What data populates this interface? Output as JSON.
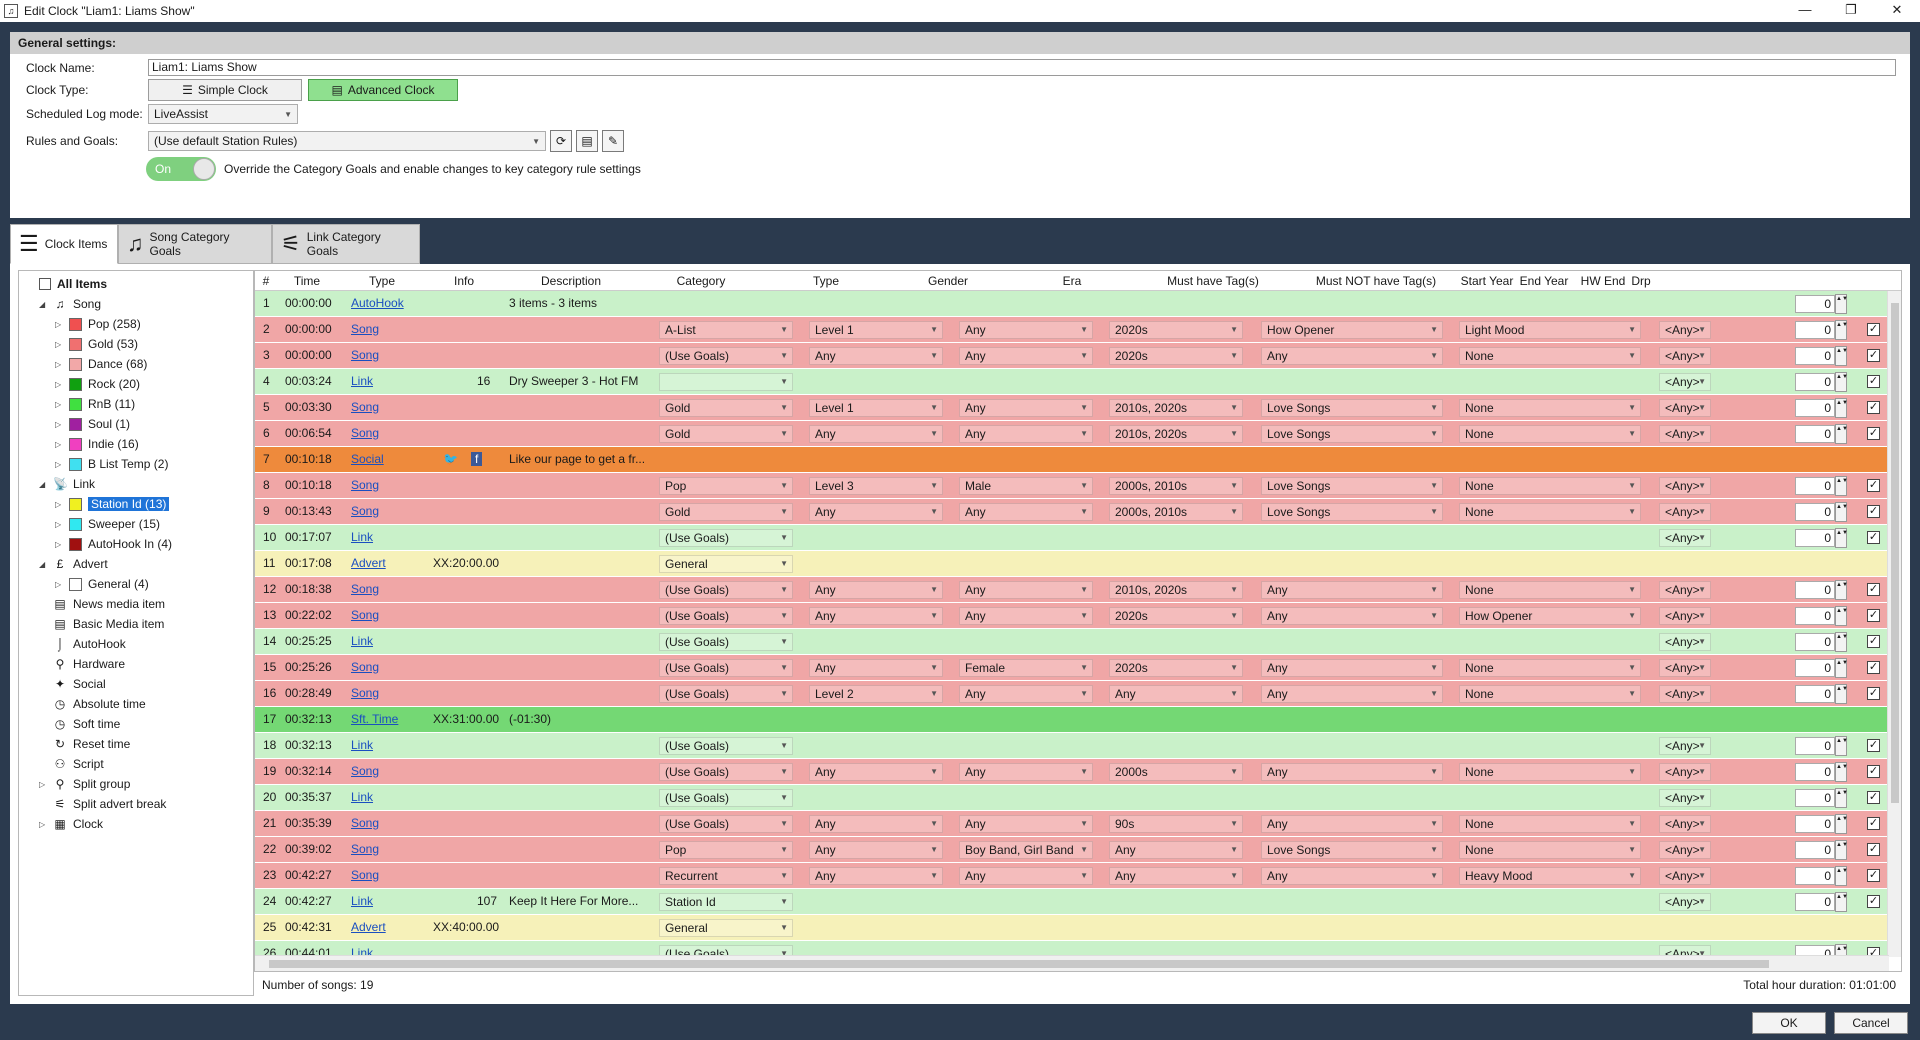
{
  "window": {
    "title": "Edit Clock \"Liam1: Liams Show\"",
    "minimize": "—",
    "maximize": "❐",
    "close": "✕"
  },
  "general": {
    "header": "General settings:",
    "clock_name_label": "Clock Name:",
    "clock_name_value": "Liam1: Liams Show",
    "clock_type_label": "Clock Type:",
    "simple_clock": "Simple Clock",
    "advanced_clock": "Advanced Clock",
    "log_mode_label": "Scheduled Log mode:",
    "log_mode_value": "LiveAssist",
    "rules_label": "Rules and Goals:",
    "rules_value": "(Use default Station Rules)",
    "toggle_label": "On",
    "override_text": "Override the Category Goals and enable changes to key category rule settings"
  },
  "tabs": [
    {
      "label": "Clock Items",
      "icon": "list-icon"
    },
    {
      "label": "Song Category Goals",
      "icon": "music-note-icon"
    },
    {
      "label": "Link Category Goals",
      "icon": "antenna-icon"
    }
  ],
  "tree": [
    {
      "label": "All Items",
      "level": 0,
      "kind": "checkbox",
      "bold": true
    },
    {
      "label": "Song",
      "level": 1,
      "kind": "icon",
      "icon": "♫",
      "expand": "◢"
    },
    {
      "label": "Pop (258)",
      "level": 2,
      "kind": "swatch",
      "color": "#f05050",
      "expand": "▷"
    },
    {
      "label": "Gold (53)",
      "level": 2,
      "kind": "swatch",
      "color": "#f07070",
      "expand": "▷"
    },
    {
      "label": "Dance (68)",
      "level": 2,
      "kind": "swatch",
      "color": "#f2a8a8",
      "expand": "▷"
    },
    {
      "label": "Rock (20)",
      "level": 2,
      "kind": "swatch",
      "color": "#10a010",
      "expand": "▷"
    },
    {
      "label": "RnB (11)",
      "level": 2,
      "kind": "swatch",
      "color": "#40e040",
      "expand": "▷"
    },
    {
      "label": "Soul (1)",
      "level": 2,
      "kind": "swatch",
      "color": "#a020a0",
      "expand": "▷"
    },
    {
      "label": "Indie (16)",
      "level": 2,
      "kind": "swatch",
      "color": "#f040c0",
      "expand": "▷"
    },
    {
      "label": "B List Temp (2)",
      "level": 2,
      "kind": "swatch",
      "color": "#40e0f0",
      "expand": "▷"
    },
    {
      "label": "Link",
      "level": 1,
      "kind": "icon",
      "icon": "📡",
      "expand": "◢"
    },
    {
      "label": "Station Id (13)",
      "level": 2,
      "kind": "swatch",
      "color": "#f0f020",
      "expand": "▷",
      "selected": true
    },
    {
      "label": "Sweeper (15)",
      "level": 2,
      "kind": "swatch",
      "color": "#30e8f0",
      "expand": "▷"
    },
    {
      "label": "AutoHook In (4)",
      "level": 2,
      "kind": "swatch",
      "color": "#a01010",
      "expand": "▷"
    },
    {
      "label": "Advert",
      "level": 1,
      "kind": "icon",
      "icon": "£",
      "expand": "◢"
    },
    {
      "label": "General (4)",
      "level": 2,
      "kind": "swatch",
      "color": "#ffffff",
      "expand": "▷"
    },
    {
      "label": "News media item",
      "level": 1,
      "kind": "icon",
      "icon": "▤"
    },
    {
      "label": "Basic Media item",
      "level": 1,
      "kind": "icon",
      "icon": "▤"
    },
    {
      "label": "AutoHook",
      "level": 1,
      "kind": "icon",
      "icon": "⌡"
    },
    {
      "label": "Hardware",
      "level": 1,
      "kind": "icon",
      "icon": "⚲"
    },
    {
      "label": "Social",
      "level": 1,
      "kind": "icon",
      "icon": "✦"
    },
    {
      "label": "Absolute time",
      "level": 1,
      "kind": "icon",
      "icon": "◷"
    },
    {
      "label": "Soft time",
      "level": 1,
      "kind": "icon",
      "icon": "◷"
    },
    {
      "label": "Reset time",
      "level": 1,
      "kind": "icon",
      "icon": "↻"
    },
    {
      "label": "Script",
      "level": 1,
      "kind": "icon",
      "icon": "⚇"
    },
    {
      "label": "Split group",
      "level": 1,
      "kind": "icon",
      "icon": "⚲",
      "expand": "▷"
    },
    {
      "label": "Split advert break",
      "level": 1,
      "kind": "icon",
      "icon": "⚟"
    },
    {
      "label": "Clock",
      "level": 1,
      "kind": "icon",
      "icon": "▦",
      "expand": "▷"
    }
  ],
  "grid_headers": [
    "#",
    "Time",
    "Type",
    "Info",
    "Description",
    "Category",
    "Type",
    "Gender",
    "Era",
    "Must have Tag(s)",
    "Must NOT have Tag(s)",
    "Start Year",
    "End Year",
    "HW End",
    "Drp"
  ],
  "rows": [
    {
      "n": "1",
      "time": "00:00:00",
      "type": "AutoHook",
      "info": "",
      "desc": "3 items - 3 items",
      "cat": "",
      "ty": "",
      "gender": "",
      "era": "",
      "must": "",
      "mustnot": "",
      "start": "",
      "hw": "0",
      "drp": "",
      "color": "green",
      "catdd": false,
      "start_dd": false
    },
    {
      "n": "2",
      "time": "00:00:00",
      "type": "Song",
      "info": "",
      "desc": "",
      "cat": "A-List",
      "ty": "Level 1",
      "gender": "Any",
      "era": "2020s",
      "must": "How Opener",
      "mustnot": "Light Mood",
      "start": "<Any>",
      "hw": "0",
      "drp": "✓",
      "color": "red",
      "full": true
    },
    {
      "n": "3",
      "time": "00:00:00",
      "type": "Song",
      "info": "",
      "desc": "",
      "cat": "(Use Goals)",
      "ty": "Any",
      "gender": "Any",
      "era": "2020s",
      "must": "Any",
      "mustnot": "None",
      "start": "<Any>",
      "hw": "0",
      "drp": "✓",
      "color": "red",
      "full": true
    },
    {
      "n": "4",
      "time": "00:03:24",
      "type": "Link",
      "info": "16",
      "desc": "Dry Sweeper 3 - Hot FM",
      "cat": "",
      "start": "<Any>",
      "hw": "0",
      "drp": "✓",
      "color": "green",
      "link": true,
      "catblank": true
    },
    {
      "n": "5",
      "time": "00:03:30",
      "type": "Song",
      "info": "",
      "desc": "",
      "cat": "Gold",
      "ty": "Level 1",
      "gender": "Any",
      "era": "2010s, 2020s",
      "must": "Love Songs",
      "mustnot": "None",
      "start": "<Any>",
      "hw": "0",
      "drp": "✓",
      "color": "red",
      "full": true
    },
    {
      "n": "6",
      "time": "00:06:54",
      "type": "Song",
      "info": "",
      "desc": "",
      "cat": "Gold",
      "ty": "Any",
      "gender": "Any",
      "era": "2010s, 2020s",
      "must": "Love Songs",
      "mustnot": "None",
      "start": "<Any>",
      "hw": "0",
      "drp": "✓",
      "color": "red",
      "full": true
    },
    {
      "n": "7",
      "time": "00:10:18",
      "type": "Social",
      "info": "",
      "desc": "Like our page to get a fr...",
      "color": "orange",
      "social": true
    },
    {
      "n": "8",
      "time": "00:10:18",
      "type": "Song",
      "info": "",
      "desc": "",
      "cat": "Pop",
      "ty": "Level 3",
      "gender": "Male",
      "era": "2000s, 2010s",
      "must": "Love Songs",
      "mustnot": "None",
      "start": "<Any>",
      "hw": "0",
      "drp": "✓",
      "color": "red",
      "full": true
    },
    {
      "n": "9",
      "time": "00:13:43",
      "type": "Song",
      "info": "",
      "desc": "",
      "cat": "Gold",
      "ty": "Any",
      "gender": "Any",
      "era": "2000s, 2010s",
      "must": "Love Songs",
      "mustnot": "None",
      "start": "<Any>",
      "hw": "0",
      "drp": "✓",
      "color": "red",
      "full": true
    },
    {
      "n": "10",
      "time": "00:17:07",
      "type": "Link",
      "info": "",
      "desc": "",
      "cat": "(Use Goals)",
      "start": "<Any>",
      "hw": "0",
      "drp": "✓",
      "color": "green",
      "link": true
    },
    {
      "n": "11",
      "time": "00:17:08",
      "type": "Advert",
      "info": "XX:20:00.00",
      "desc": "",
      "cat": "General",
      "color": "yellow",
      "advert": true
    },
    {
      "n": "12",
      "time": "00:18:38",
      "type": "Song",
      "info": "",
      "desc": "",
      "cat": "(Use Goals)",
      "ty": "Any",
      "gender": "Any",
      "era": "2010s, 2020s",
      "must": "Any",
      "mustnot": "None",
      "start": "<Any>",
      "hw": "0",
      "drp": "✓",
      "color": "red",
      "full": true
    },
    {
      "n": "13",
      "time": "00:22:02",
      "type": "Song",
      "info": "",
      "desc": "",
      "cat": "(Use Goals)",
      "ty": "Any",
      "gender": "Any",
      "era": "2020s",
      "must": "Any",
      "mustnot": "How Opener",
      "start": "<Any>",
      "hw": "0",
      "drp": "✓",
      "color": "red",
      "full": true
    },
    {
      "n": "14",
      "time": "00:25:25",
      "type": "Link",
      "info": "",
      "desc": "",
      "cat": "(Use Goals)",
      "start": "<Any>",
      "hw": "0",
      "drp": "✓",
      "color": "green",
      "link": true
    },
    {
      "n": "15",
      "time": "00:25:26",
      "type": "Song",
      "info": "",
      "desc": "",
      "cat": "(Use Goals)",
      "ty": "Any",
      "gender": "Female",
      "era": "2020s",
      "must": "Any",
      "mustnot": "None",
      "start": "<Any>",
      "hw": "0",
      "drp": "✓",
      "color": "red",
      "full": true
    },
    {
      "n": "16",
      "time": "00:28:49",
      "type": "Song",
      "info": "",
      "desc": "",
      "cat": "(Use Goals)",
      "ty": "Level 2",
      "gender": "Any",
      "era": "Any",
      "must": "Any",
      "mustnot": "None",
      "start": "<Any>",
      "hw": "0",
      "drp": "✓",
      "color": "red",
      "full": true
    },
    {
      "n": "17",
      "time": "00:32:13",
      "type": "Sft. Time",
      "info": "XX:31:00.00",
      "desc": "(-01:30)",
      "color": "brightgreen",
      "plain": true
    },
    {
      "n": "18",
      "time": "00:32:13",
      "type": "Link",
      "info": "",
      "desc": "",
      "cat": "(Use Goals)",
      "start": "<Any>",
      "hw": "0",
      "drp": "✓",
      "color": "green",
      "link": true
    },
    {
      "n": "19",
      "time": "00:32:14",
      "type": "Song",
      "info": "",
      "desc": "",
      "cat": "(Use Goals)",
      "ty": "Any",
      "gender": "Any",
      "era": "2000s",
      "must": "Any",
      "mustnot": "None",
      "start": "<Any>",
      "hw": "0",
      "drp": "✓",
      "color": "red",
      "full": true
    },
    {
      "n": "20",
      "time": "00:35:37",
      "type": "Link",
      "info": "",
      "desc": "",
      "cat": "(Use Goals)",
      "start": "<Any>",
      "hw": "0",
      "drp": "✓",
      "color": "green",
      "link": true
    },
    {
      "n": "21",
      "time": "00:35:39",
      "type": "Song",
      "info": "",
      "desc": "",
      "cat": "(Use Goals)",
      "ty": "Any",
      "gender": "Any",
      "era": "90s",
      "must": "Any",
      "mustnot": "None",
      "start": "<Any>",
      "hw": "0",
      "drp": "✓",
      "color": "red",
      "full": true
    },
    {
      "n": "22",
      "time": "00:39:02",
      "type": "Song",
      "info": "",
      "desc": "",
      "cat": "Pop",
      "ty": "Any",
      "gender": "Boy Band, Girl Band",
      "era": "Any",
      "must": "Love Songs",
      "mustnot": "None",
      "start": "<Any>",
      "hw": "0",
      "drp": "✓",
      "color": "red",
      "full": true
    },
    {
      "n": "23",
      "time": "00:42:27",
      "type": "Song",
      "info": "",
      "desc": "",
      "cat": "Recurrent",
      "ty": "Any",
      "gender": "Any",
      "era": "Any",
      "must": "Any",
      "mustnot": "Heavy Mood",
      "start": "<Any>",
      "hw": "0",
      "drp": "✓",
      "color": "red",
      "full": true
    },
    {
      "n": "24",
      "time": "00:42:27",
      "type": "Link",
      "info": "107",
      "desc": "Keep It Here For More...",
      "cat": "Station Id",
      "start": "<Any>",
      "hw": "0",
      "drp": "✓",
      "color": "green",
      "link": true
    },
    {
      "n": "25",
      "time": "00:42:31",
      "type": "Advert",
      "info": "XX:40:00.00",
      "desc": "",
      "cat": "General",
      "color": "yellow",
      "advert": true
    },
    {
      "n": "26",
      "time": "00:44:01",
      "type": "Link",
      "info": "",
      "desc": "",
      "cat": "(Use Goals)",
      "start": "<Any>",
      "hw": "0",
      "drp": "✓",
      "color": "green",
      "link": true
    }
  ],
  "footer": {
    "songs": "Number of songs: 19",
    "duration": "Total hour duration: 01:01:00"
  },
  "buttons": {
    "ok": "OK",
    "cancel": "Cancel"
  }
}
